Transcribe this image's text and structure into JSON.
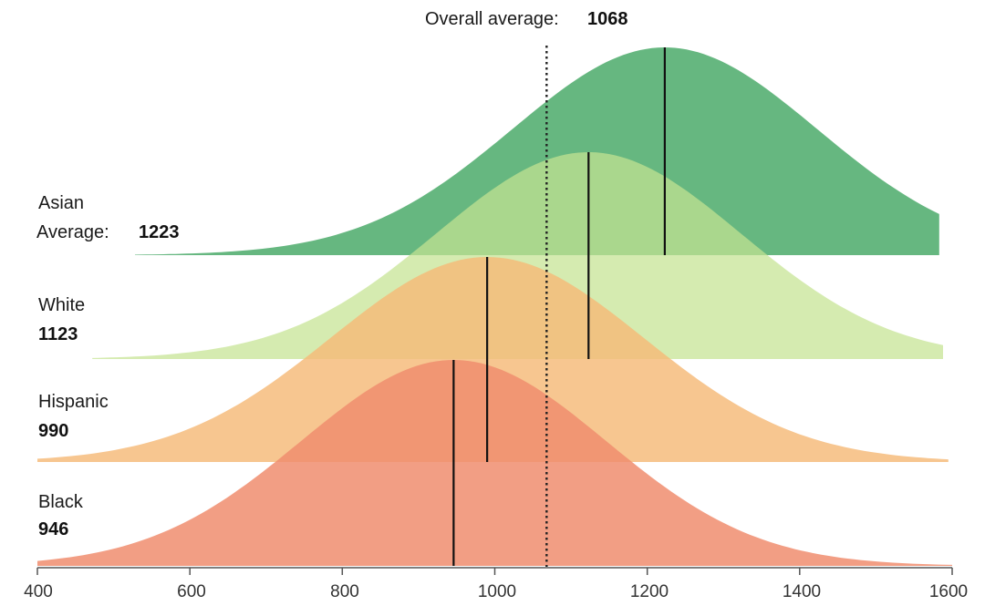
{
  "chart_data": {
    "type": "area",
    "title": "",
    "xlabel": "",
    "ylabel": "",
    "xlim": [
      400,
      1600
    ],
    "x_ticks": [
      "400",
      "600",
      "800",
      "1000",
      "1200",
      "1400",
      "1600"
    ],
    "overall_average": {
      "label": "Overall average:",
      "value": "1068",
      "x": 1068
    },
    "average_label": "Average:",
    "series": [
      {
        "name": "Asian",
        "average_text": "1223",
        "mean": 1223,
        "sd": 200,
        "x_start": 528,
        "x_end": 1583,
        "color": "#4baa6a"
      },
      {
        "name": "White",
        "average_text": "1123",
        "mean": 1123,
        "sd": 200,
        "x_start": 472,
        "x_end": 1588,
        "color": "#c5e391"
      },
      {
        "name": "Hispanic",
        "average_text": "990",
        "mean": 990,
        "sd": 205,
        "x_start": 400,
        "x_end": 1595,
        "color": "#f5ba78"
      },
      {
        "name": "Black",
        "average_text": "946",
        "mean": 946,
        "sd": 200,
        "x_start": 400,
        "x_end": 1600,
        "color": "#f08d6e"
      }
    ]
  }
}
